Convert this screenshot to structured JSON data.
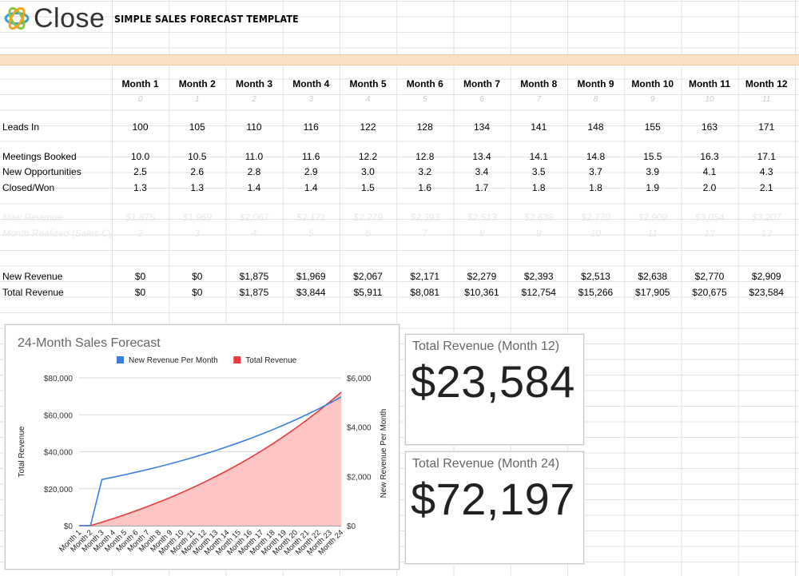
{
  "brand": {
    "name": "Close"
  },
  "sheet_title": "SIMPLE SALES FORECAST TEMPLATE",
  "months": [
    "Month 1",
    "Month 2",
    "Month 3",
    "Month 4",
    "Month 5",
    "Month 6",
    "Month 7",
    "Month 8",
    "Month 9",
    "Month 10",
    "Month 11",
    "Month 12"
  ],
  "month_index": [
    "0",
    "1",
    "2",
    "3",
    "4",
    "5",
    "6",
    "7",
    "8",
    "9",
    "10",
    "11"
  ],
  "rows": [
    {
      "key": "leads",
      "label": "Leads In",
      "values": [
        "100",
        "105",
        "110",
        "116",
        "122",
        "128",
        "134",
        "141",
        "148",
        "155",
        "163",
        "171"
      ]
    },
    {
      "key": "meetings",
      "label": "Meetings Booked",
      "values": [
        "10.0",
        "10.5",
        "11.0",
        "11.6",
        "12.2",
        "12.8",
        "13.4",
        "14.1",
        "14.8",
        "15.5",
        "16.3",
        "17.1"
      ]
    },
    {
      "key": "opps",
      "label": "New Opportunities",
      "values": [
        "2.5",
        "2.6",
        "2.8",
        "2.9",
        "3.0",
        "3.2",
        "3.4",
        "3.5",
        "3.7",
        "3.9",
        "4.1",
        "4.3"
      ]
    },
    {
      "key": "closed",
      "label": "Closed/Won",
      "values": [
        "1.3",
        "1.3",
        "1.4",
        "1.4",
        "1.5",
        "1.6",
        "1.7",
        "1.8",
        "1.8",
        "1.9",
        "2.0",
        "2.1"
      ]
    },
    {
      "key": "ghost_rev",
      "label": "New Revenue",
      "values": [
        "$1,875",
        "$1,969",
        "$2,067",
        "$2,171",
        "$2,279",
        "$2,393",
        "$2,513",
        "$2,638",
        "$2,770",
        "$2,909",
        "$3,054",
        "$3,207"
      ]
    },
    {
      "key": "ghost_month",
      "label": "Month Realized (Sales Cycle)",
      "values": [
        "2",
        "3",
        "4",
        "5",
        "6",
        "7",
        "8",
        "9",
        "10",
        "11",
        "12",
        "13"
      ]
    },
    {
      "key": "new_revenue",
      "label": "New Revenue",
      "values": [
        "$0",
        "$0",
        "$1,875",
        "$1,969",
        "$2,067",
        "$2,171",
        "$2,279",
        "$2,393",
        "$2,513",
        "$2,638",
        "$2,770",
        "$2,909"
      ]
    },
    {
      "key": "total_revenue",
      "label": "Total Revenue",
      "values": [
        "$0",
        "$0",
        "$1,875",
        "$3,844",
        "$5,911",
        "$8,081",
        "$10,361",
        "$12,754",
        "$15,266",
        "$17,905",
        "$20,675",
        "$23,584"
      ]
    }
  ],
  "kpis": {
    "month12": {
      "title": "Total Revenue (Month 12)",
      "value": "$23,584"
    },
    "month24": {
      "title": "Total Revenue (Month 24)",
      "value": "$72,197"
    }
  },
  "chart_data": {
    "type": "line",
    "title": "24-Month Sales Forecast",
    "categories": [
      "Month 1",
      "Month 2",
      "Month 3",
      "Month 4",
      "Month 5",
      "Month 6",
      "Month 7",
      "Month 8",
      "Month 9",
      "Month 10",
      "Month 11",
      "Month 12",
      "Month 13",
      "Month 14",
      "Month 15",
      "Month 16",
      "Month 17",
      "Month 18",
      "Month 19",
      "Month 20",
      "Month 21",
      "Month 22",
      "Month 23",
      "Month 24"
    ],
    "left_axis": {
      "label": "Total Revenue",
      "range": [
        0,
        80000
      ],
      "ticks": [
        "$0",
        "$20,000",
        "$40,000",
        "$60,000",
        "$80,000"
      ]
    },
    "right_axis": {
      "label": "New Revenue Per Month",
      "range": [
        0,
        6000
      ],
      "ticks": [
        "$0",
        "$2,000",
        "$4,000",
        "$6,000"
      ]
    },
    "legend_position": "top",
    "series": [
      {
        "name": "New Revenue Per Month",
        "type": "line",
        "axis": "right",
        "color": "#3b7fdc",
        "values": [
          0,
          0,
          1875,
          1969,
          2067,
          2171,
          2279,
          2393,
          2513,
          2638,
          2770,
          2909,
          3054,
          3207,
          3367,
          3536,
          3713,
          3898,
          4093,
          4298,
          4513,
          4738,
          4975,
          5224
        ]
      },
      {
        "name": "Total Revenue",
        "type": "area",
        "axis": "left",
        "color": "#e93b3b",
        "fill": "#ffc4c4",
        "values": [
          0,
          0,
          1875,
          3844,
          5911,
          8081,
          10361,
          12754,
          15266,
          17905,
          20675,
          23584,
          26638,
          29845,
          33212,
          36748,
          40460,
          44359,
          48452,
          52750,
          57262,
          62000,
          66975,
          72197
        ]
      }
    ],
    "grid": true
  }
}
